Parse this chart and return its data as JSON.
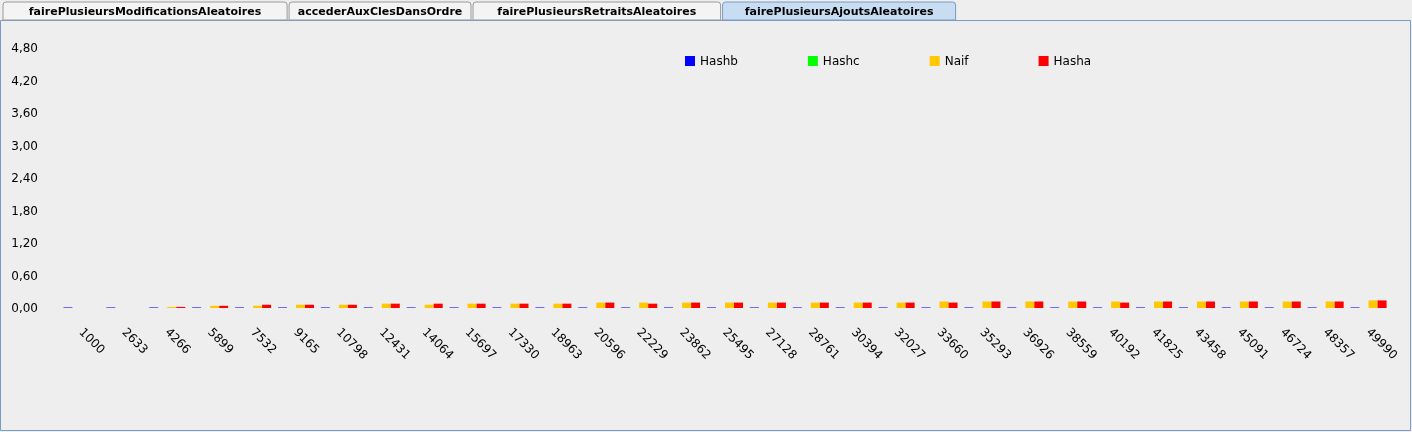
{
  "chart_data": {
    "type": "bar",
    "title": "fairePlusieursAjoutsAleatoires",
    "annotations": [
      "fairePlusieursModificationsAleatoires",
      "accederAuxClesDansOrdre",
      "fairePlusieursRetraitsAleatoires"
    ],
    "categories": [
      "1000",
      "2633",
      "4266",
      "5899",
      "7532",
      "9165",
      "10798",
      "12431",
      "14064",
      "15697",
      "17330",
      "18963",
      "20596",
      "22229",
      "23862",
      "25495",
      "27128",
      "28761",
      "30394",
      "32027",
      "33660",
      "35293",
      "36926",
      "38559",
      "40192",
      "41825",
      "43458",
      "45091",
      "46724",
      "48357",
      "49990"
    ],
    "series": [
      {
        "name": "Hashb",
        "color": "#0000ff",
        "values": [
          0.01,
          0.01,
          0.01,
          0.01,
          0.01,
          0.01,
          0.01,
          0.01,
          0.01,
          0.01,
          0.01,
          0.01,
          0.01,
          0.01,
          0.01,
          0.01,
          0.01,
          0.01,
          0.01,
          0.01,
          0.01,
          0.01,
          0.01,
          0.01,
          0.01,
          0.01,
          0.01,
          0.01,
          0.01,
          0.01,
          0.01
        ]
      },
      {
        "name": "Hashc",
        "color": "#00ff00",
        "values": [
          0,
          0,
          0,
          0,
          0,
          0,
          0,
          0,
          0,
          0,
          0,
          0,
          0,
          0,
          0,
          0,
          0,
          0,
          0,
          0,
          0,
          0,
          0,
          0,
          0,
          0,
          0,
          0,
          0,
          0,
          0
        ]
      },
      {
        "name": "Naif",
        "color": "#ffc800",
        "values": [
          0,
          0,
          0.02,
          0.04,
          0.04,
          0.06,
          0.06,
          0.08,
          0.06,
          0.08,
          0.08,
          0.08,
          0.1,
          0.1,
          0.1,
          0.1,
          0.1,
          0.1,
          0.1,
          0.1,
          0.12,
          0.12,
          0.12,
          0.12,
          0.12,
          0.12,
          0.12,
          0.12,
          0.12,
          0.12,
          0.14
        ]
      },
      {
        "name": "Hasha",
        "color": "#ff0000",
        "values": [
          0,
          0,
          0.02,
          0.04,
          0.06,
          0.06,
          0.06,
          0.08,
          0.08,
          0.08,
          0.08,
          0.08,
          0.1,
          0.08,
          0.1,
          0.1,
          0.1,
          0.1,
          0.1,
          0.1,
          0.1,
          0.12,
          0.12,
          0.12,
          0.1,
          0.12,
          0.12,
          0.12,
          0.12,
          0.12,
          0.14
        ]
      }
    ],
    "ylim": [
      0,
      4.8
    ],
    "yticks": [
      {
        "value": 0,
        "label": "0,00"
      },
      {
        "value": 0.6,
        "label": "0,60"
      },
      {
        "value": 1.2,
        "label": "1,20"
      },
      {
        "value": 1.8,
        "label": "1,80"
      },
      {
        "value": 2.4,
        "label": "2,40"
      },
      {
        "value": 3.0,
        "label": "3,00"
      },
      {
        "value": 3.6,
        "label": "3,60"
      },
      {
        "value": 4.2,
        "label": "4,20"
      },
      {
        "value": 4.8,
        "label": "4,80"
      }
    ],
    "grid": false,
    "legend": "top right"
  }
}
